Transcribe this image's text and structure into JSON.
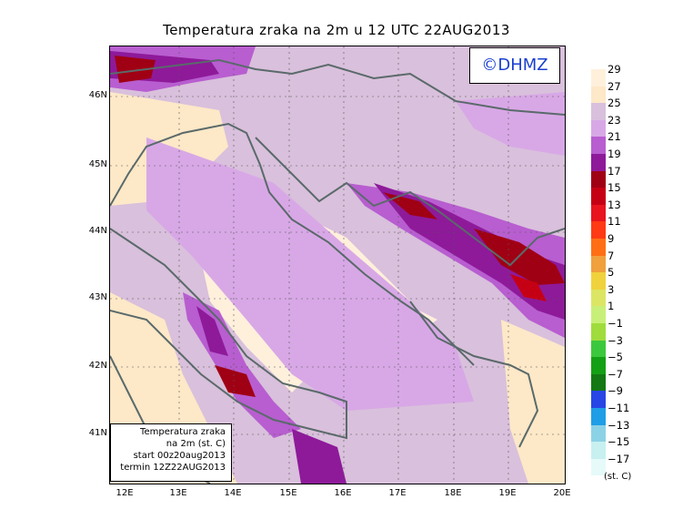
{
  "title": "Temperatura zraka na 2m u 12 UTC 22AUG2013",
  "logo": "©DHMZ",
  "info": {
    "line1": "Temperatura zraka",
    "line2": "na 2m (st. C)",
    "line3": "start 00z20aug2013",
    "line4": "termin 12Z22AUG2013"
  },
  "lat_labels": [
    "46N",
    "45N",
    "44N",
    "43N",
    "42N",
    "41N"
  ],
  "lon_labels": [
    "12E",
    "13E",
    "14E",
    "15E",
    "16E",
    "17E",
    "18E",
    "19E",
    "20E"
  ],
  "legend": {
    "labels": [
      "29",
      "27",
      "25",
      "23",
      "21",
      "19",
      "17",
      "15",
      "13",
      "11",
      "9",
      "7",
      "5",
      "3",
      "1",
      "−1",
      "−3",
      "−5",
      "−7",
      "−9",
      "−11",
      "−13",
      "−15",
      "−17"
    ],
    "colors": [
      "#fff0dc",
      "#fde8c8",
      "#d9c0dc",
      "#d8a8e6",
      "#b85ed0",
      "#8e1a9a",
      "#a00014",
      "#c60014",
      "#e8141e",
      "#ff3a14",
      "#ff6e14",
      "#f0a03c",
      "#f0d23c",
      "#dce664",
      "#c8f078",
      "#a0dc3c",
      "#3cc83c",
      "#14a014",
      "#147814",
      "#2846e6",
      "#1e9ee6",
      "#8cd2e6",
      "#c8f0f0",
      "#e6fafa"
    ],
    "units": "(st. C)"
  }
}
